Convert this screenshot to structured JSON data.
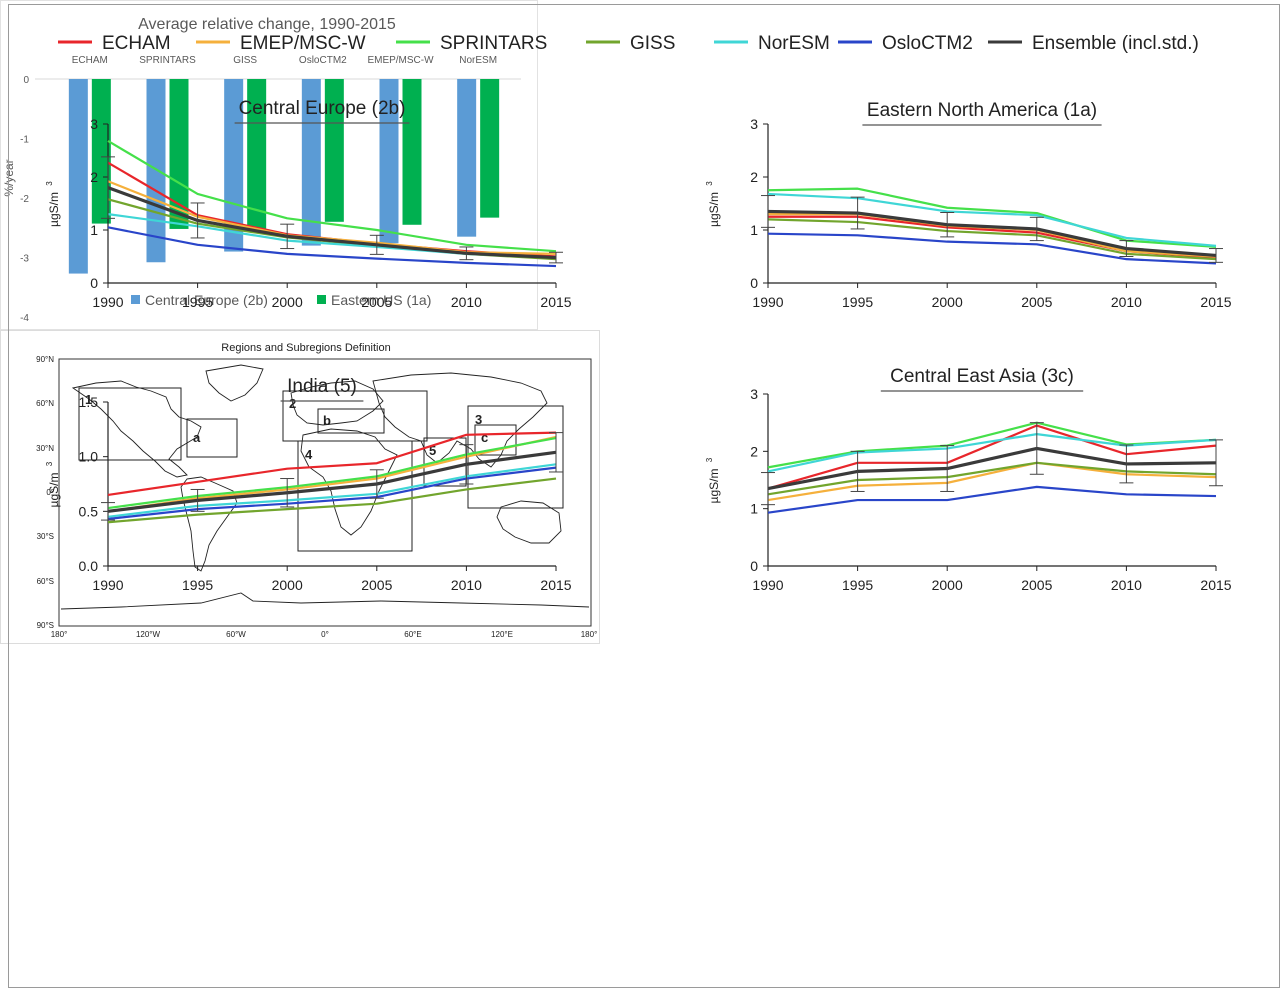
{
  "colors": {
    "ECHAM": "#e8262b",
    "EMEP/MSC-W": "#f5b03c",
    "SPRINTARS": "#45e04a",
    "GISS": "#72a52d",
    "NorESM": "#3fd6d6",
    "OsloCTM2": "#2945c9",
    "Ensemble (incl.std.)": "#3a3a3a",
    "bar_ce": "#5b9bd5",
    "bar_us": "#00b050"
  },
  "legend": {
    "items": [
      {
        "name": "ECHAM",
        "color": "#e8262b"
      },
      {
        "name": "EMEP/MSC-W",
        "color": "#f5b03c"
      },
      {
        "name": "SPRINTARS",
        "color": "#45e04a"
      },
      {
        "name": "GISS",
        "color": "#72a52d"
      },
      {
        "name": "NorESM",
        "color": "#3fd6d6"
      },
      {
        "name": "OsloCTM2",
        "color": "#2945c9"
      },
      {
        "name": "Ensemble (incl.std.)",
        "color": "#3a3a3a"
      }
    ]
  },
  "chart_data": [
    {
      "type": "line",
      "title": "Central Europe (2b)",
      "ylabel": "µgS/m",
      "ylabel_sup": "3",
      "x": [
        1990,
        1995,
        2000,
        2005,
        2010,
        2015
      ],
      "ylim": [
        0,
        3
      ],
      "yticks": [
        "0",
        "1",
        "2",
        "3"
      ],
      "series": [
        {
          "name": "ECHAM",
          "values": [
            2.27,
            1.28,
            0.92,
            0.74,
            0.6,
            0.5
          ]
        },
        {
          "name": "EMEP/MSC-W",
          "values": [
            1.92,
            1.25,
            0.9,
            0.76,
            0.58,
            0.55
          ]
        },
        {
          "name": "SPRINTARS",
          "values": [
            2.68,
            1.68,
            1.22,
            1.0,
            0.72,
            0.6
          ]
        },
        {
          "name": "GISS",
          "values": [
            1.58,
            1.12,
            0.86,
            0.7,
            0.55,
            0.45
          ]
        },
        {
          "name": "NorESM",
          "values": [
            1.3,
            1.07,
            0.8,
            0.68,
            0.55,
            0.48
          ]
        },
        {
          "name": "OsloCTM2",
          "values": [
            1.05,
            0.72,
            0.55,
            0.46,
            0.38,
            0.32
          ]
        },
        {
          "name": "Ensemble (incl.std.)",
          "values": [
            1.8,
            1.18,
            0.88,
            0.72,
            0.56,
            0.48
          ],
          "std": [
            0.58,
            0.33,
            0.23,
            0.18,
            0.12,
            0.1
          ]
        }
      ]
    },
    {
      "type": "line",
      "title": "Eastern North America (1a)",
      "ylabel": "µgS/m",
      "ylabel_sup": "3",
      "x": [
        1990,
        1995,
        2000,
        2005,
        2010,
        2015
      ],
      "ylim": [
        0,
        3
      ],
      "yticks": [
        "0",
        "1",
        "2",
        "3"
      ],
      "series": [
        {
          "name": "ECHAM",
          "values": [
            1.25,
            1.25,
            1.05,
            0.95,
            0.6,
            0.48
          ]
        },
        {
          "name": "EMEP/MSC-W",
          "values": [
            1.3,
            1.3,
            1.08,
            1.0,
            0.6,
            0.5
          ]
        },
        {
          "name": "SPRINTARS",
          "values": [
            1.75,
            1.78,
            1.42,
            1.32,
            0.8,
            0.68
          ]
        },
        {
          "name": "GISS",
          "values": [
            1.2,
            1.15,
            0.98,
            0.9,
            0.55,
            0.45
          ]
        },
        {
          "name": "NorESM",
          "values": [
            1.68,
            1.6,
            1.35,
            1.28,
            0.85,
            0.7
          ]
        },
        {
          "name": "OsloCTM2",
          "values": [
            0.93,
            0.9,
            0.78,
            0.73,
            0.45,
            0.37
          ]
        },
        {
          "name": "Ensemble (incl.std.)",
          "values": [
            1.35,
            1.32,
            1.1,
            1.02,
            0.65,
            0.52
          ],
          "std": [
            0.3,
            0.3,
            0.23,
            0.22,
            0.15,
            0.13
          ]
        }
      ]
    },
    {
      "type": "line",
      "title": "India (5)",
      "ylabel": "µgS/m",
      "ylabel_sup": "3",
      "x": [
        1990,
        1995,
        2000,
        2005,
        2010,
        2015
      ],
      "ylim": [
        0,
        1.5
      ],
      "yticks": [
        "0.0",
        "0.5",
        "1.0",
        "1.5"
      ],
      "series": [
        {
          "name": "ECHAM",
          "values": [
            0.65,
            0.77,
            0.89,
            0.94,
            1.2,
            1.22
          ]
        },
        {
          "name": "EMEP/MSC-W",
          "values": [
            0.5,
            0.62,
            0.7,
            0.8,
            1.0,
            1.18
          ]
        },
        {
          "name": "SPRINTARS",
          "values": [
            0.53,
            0.64,
            0.72,
            0.82,
            1.02,
            1.17
          ]
        },
        {
          "name": "GISS",
          "values": [
            0.4,
            0.47,
            0.52,
            0.57,
            0.7,
            0.8
          ]
        },
        {
          "name": "NorESM",
          "values": [
            0.45,
            0.55,
            0.6,
            0.66,
            0.82,
            0.93
          ]
        },
        {
          "name": "OsloCTM2",
          "values": [
            0.43,
            0.52,
            0.57,
            0.63,
            0.8,
            0.9
          ]
        },
        {
          "name": "Ensemble (incl.std.)",
          "values": [
            0.5,
            0.6,
            0.67,
            0.75,
            0.93,
            1.04
          ],
          "std": [
            0.08,
            0.1,
            0.13,
            0.13,
            0.18,
            0.18
          ]
        }
      ]
    },
    {
      "type": "line",
      "title": "Central East Asia (3c)",
      "ylabel": "µgS/m",
      "ylabel_sup": "3",
      "x": [
        1990,
        1995,
        2000,
        2005,
        2010,
        2015
      ],
      "ylim": [
        0,
        3
      ],
      "yticks": [
        "0",
        "1",
        "2",
        "3"
      ],
      "series": [
        {
          "name": "ECHAM",
          "values": [
            1.35,
            1.8,
            1.8,
            2.45,
            1.95,
            2.1
          ]
        },
        {
          "name": "EMEP/MSC-W",
          "values": [
            1.15,
            1.4,
            1.45,
            1.8,
            1.6,
            1.55
          ]
        },
        {
          "name": "SPRINTARS",
          "values": [
            1.72,
            2.0,
            2.1,
            2.5,
            2.12,
            2.2
          ]
        },
        {
          "name": "GISS",
          "values": [
            1.25,
            1.5,
            1.55,
            1.8,
            1.65,
            1.6
          ]
        },
        {
          "name": "NorESM",
          "values": [
            1.65,
            1.98,
            2.05,
            2.3,
            2.1,
            2.2
          ]
        },
        {
          "name": "OsloCTM2",
          "values": [
            0.93,
            1.15,
            1.15,
            1.38,
            1.25,
            1.22
          ]
        },
        {
          "name": "Ensemble (incl.std.)",
          "values": [
            1.35,
            1.65,
            1.7,
            2.05,
            1.78,
            1.8
          ],
          "std": [
            0.28,
            0.35,
            0.4,
            0.45,
            0.33,
            0.4
          ]
        }
      ]
    },
    {
      "type": "bar",
      "title": "Average relative change, 1990-2015",
      "categories": [
        "ECHAM",
        "SPRINTARS",
        "GISS",
        "OsloCTM2",
        "EMEP/MSC-W",
        "NorESM"
      ],
      "ylabel": "%/year",
      "ylim": [
        -4,
        0
      ],
      "yticks": [
        "0",
        "-1",
        "-2",
        "-3",
        "-4"
      ],
      "series": [
        {
          "name": "Central Europe (2b)",
          "values": [
            -3.27,
            -3.08,
            -2.9,
            -2.8,
            -2.76,
            -2.65
          ]
        },
        {
          "name": "Eastern US (1a)",
          "values": [
            -2.43,
            -2.52,
            -2.55,
            -2.4,
            -2.45,
            -2.33
          ]
        }
      ]
    }
  ],
  "map": {
    "title": "Regions and Subregions Definition",
    "lat_labels": [
      "90°N",
      "60°N",
      "30°N",
      "0°",
      "30°S",
      "60°S",
      "90°S"
    ],
    "lon_labels": [
      "180°",
      "120°W",
      "60°W",
      "0°",
      "60°E",
      "120°E",
      "180°"
    ],
    "region_labels": [
      "1",
      "2",
      "3",
      "4",
      "5",
      "a",
      "b",
      "c"
    ]
  }
}
